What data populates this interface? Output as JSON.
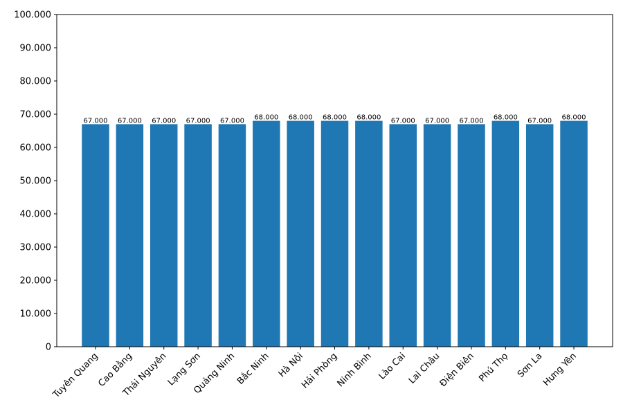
{
  "chart_data": {
    "type": "bar",
    "categories": [
      "Tuyên Quang",
      "Cao Bằng",
      "Thái Nguyên",
      "Lạng Sơn",
      "Quảng Ninh",
      "Bắc Ninh",
      "Hà Nội",
      "Hải Phòng",
      "Ninh Bình",
      "Lào Cai",
      "Lai Châu",
      "Điện Biên",
      "Phú Thọ",
      "Sơn La",
      "Hưng Yên"
    ],
    "values": [
      67000,
      67000,
      67000,
      67000,
      67000,
      68000,
      68000,
      68000,
      68000,
      67000,
      67000,
      67000,
      68000,
      67000,
      68000
    ],
    "value_labels": [
      "67.000",
      "67.000",
      "67.000",
      "67.000",
      "67.000",
      "68.000",
      "68.000",
      "68.000",
      "68.000",
      "67.000",
      "67.000",
      "67.000",
      "68.000",
      "67.000",
      "68.000"
    ],
    "color": "#1f77b4",
    "ylim": [
      0,
      100000
    ],
    "yticks": [
      0,
      {
        "value": 10000,
        "label": "10.000"
      },
      {
        "value": 20000,
        "label": "20.000"
      },
      {
        "value": 30000,
        "label": "30.000"
      },
      {
        "value": 40000,
        "label": "40.000"
      },
      {
        "value": 50000,
        "label": "50.000"
      },
      {
        "value": 60000,
        "label": "60.000"
      },
      {
        "value": 70000,
        "label": "70.000"
      },
      {
        "value": 80000,
        "label": "80.000"
      },
      {
        "value": 90000,
        "label": "90.000"
      },
      {
        "value": 100000,
        "label": "100.000"
      }
    ],
    "grid": false
  }
}
